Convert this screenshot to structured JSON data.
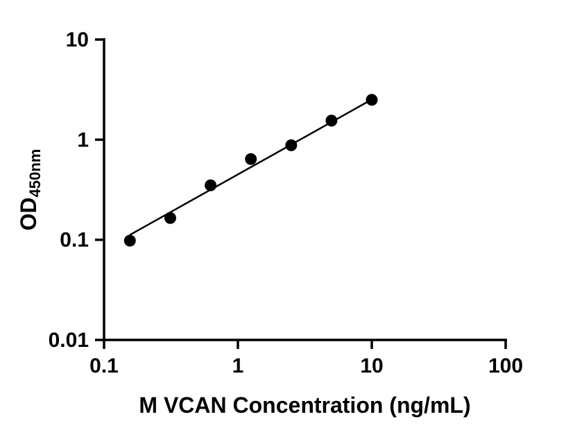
{
  "chart_data": {
    "type": "scatter",
    "title": "",
    "xlabel": "M VCAN Concentration (ng/mL)",
    "ylabel_main": "OD",
    "ylabel_sub": "450nm",
    "x_scale": "log",
    "y_scale": "log",
    "xlim": [
      0.1,
      100
    ],
    "ylim": [
      0.01,
      10
    ],
    "grid": false,
    "legend": false,
    "x_ticks": [
      {
        "value": 0.1,
        "label": "0.1"
      },
      {
        "value": 1,
        "label": "1"
      },
      {
        "value": 10,
        "label": "10"
      },
      {
        "value": 100,
        "label": "100"
      }
    ],
    "y_ticks": [
      {
        "value": 0.01,
        "label": "0.01"
      },
      {
        "value": 0.1,
        "label": "0.1"
      },
      {
        "value": 1,
        "label": "1"
      },
      {
        "value": 10,
        "label": "10"
      }
    ],
    "points": [
      {
        "x": 0.156,
        "y": 0.098
      },
      {
        "x": 0.3125,
        "y": 0.165
      },
      {
        "x": 0.625,
        "y": 0.35
      },
      {
        "x": 1.25,
        "y": 0.64
      },
      {
        "x": 2.5,
        "y": 0.88
      },
      {
        "x": 5,
        "y": 1.55
      },
      {
        "x": 10,
        "y": 2.5
      }
    ],
    "fit_line": {
      "x1": 0.156,
      "y1": 0.112,
      "x2": 10,
      "y2": 2.52
    },
    "axis_color": "#000000",
    "point_color": "#000000",
    "line_color": "#000000",
    "text_color": "#000000"
  }
}
